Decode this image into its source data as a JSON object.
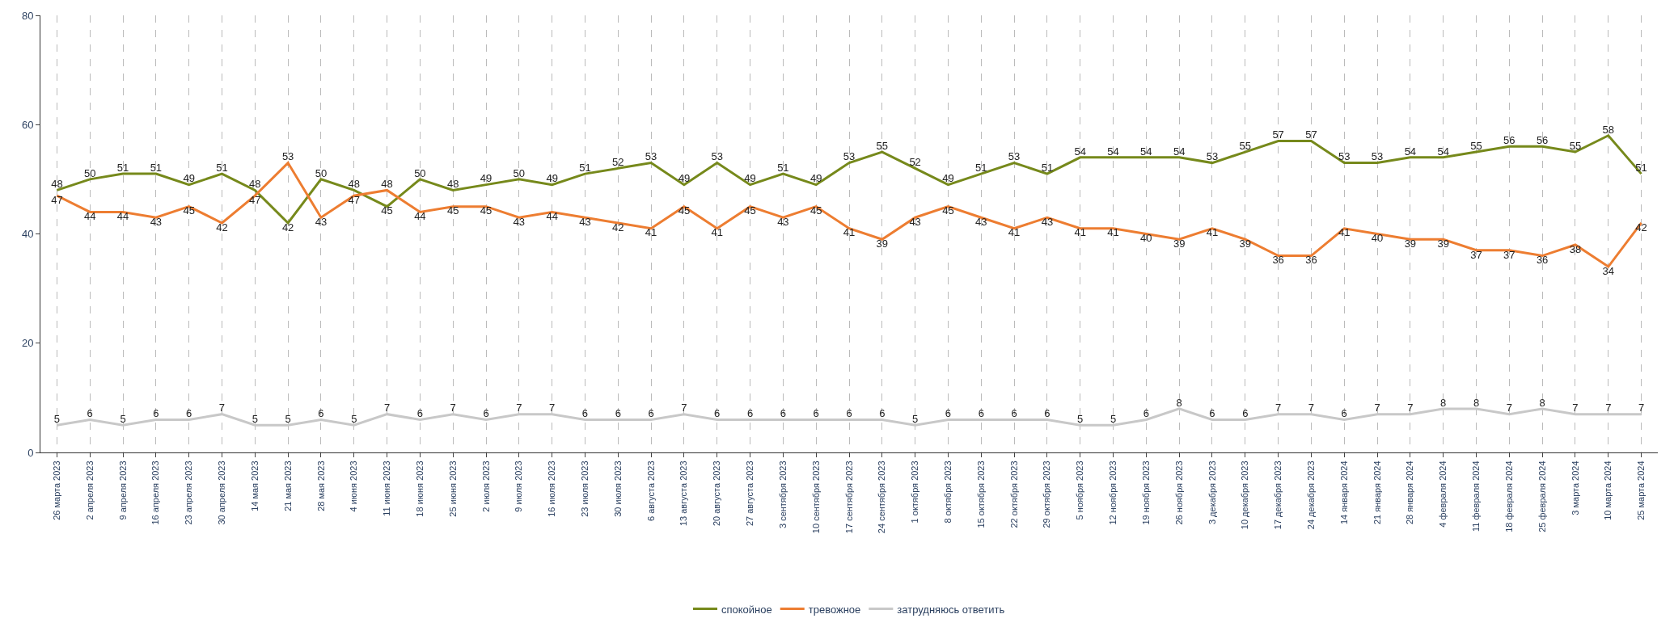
{
  "chart_data": {
    "type": "line",
    "categories": [
      "26 марта 2023",
      "2 апреля 2023",
      "9 апреля 2023",
      "16 апреля 2023",
      "23 апреля 2023",
      "30 апреля 2023",
      "14 мая 2023",
      "21 мая 2023",
      "28 мая 2023",
      "4 июня 2023",
      "11 июня 2023",
      "18 июня 2023",
      "25 июня 2023",
      "2 июля 2023",
      "9 июля 2023",
      "16 июля 2023",
      "23 июля 2023",
      "30 июля 2023",
      "6 августа 2023",
      "13 августа 2023",
      "20 августа 2023",
      "27 августа 2023",
      "3 сентября 2023",
      "10 сентября 2023",
      "17 сентября 2023",
      "24 сентября 2023",
      "1 октября 2023",
      "8 октября 2023",
      "15 октября 2023",
      "22 октября 2023",
      "29 октября 2023",
      "5 ноября 2023",
      "12 ноября 2023",
      "19 ноября 2023",
      "26 ноября 2023",
      "3 декабря 2023",
      "10 декабря 2023",
      "17 декабря 2023",
      "24 декабря 2023",
      "14 января 2024",
      "21 января 2024",
      "28 января 2024",
      "4 февраля 2024",
      "11 февраля 2024",
      "18 февраля 2024",
      "25 февраля 2024",
      "3 марта 2024",
      "10 марта 2024",
      "25 марта 2024"
    ],
    "series": [
      {
        "name": "спокойное",
        "color": "#76891b",
        "values": [
          48,
          50,
          51,
          51,
          49,
          51,
          48,
          42,
          50,
          48,
          45,
          50,
          48,
          49,
          50,
          49,
          51,
          52,
          53,
          49,
          53,
          49,
          51,
          49,
          53,
          55,
          52,
          49,
          51,
          53,
          51,
          54,
          54,
          54,
          54,
          53,
          55,
          57,
          57,
          53,
          53,
          54,
          54,
          55,
          56,
          56,
          55,
          58,
          51
        ]
      },
      {
        "name": "тревожное",
        "color": "#ed7d31",
        "values": [
          47,
          44,
          44,
          43,
          45,
          42,
          47,
          53,
          43,
          47,
          48,
          44,
          45,
          45,
          43,
          44,
          43,
          42,
          41,
          45,
          41,
          45,
          43,
          45,
          41,
          39,
          43,
          45,
          43,
          41,
          43,
          41,
          41,
          40,
          39,
          41,
          39,
          36,
          36,
          41,
          40,
          39,
          39,
          37,
          37,
          36,
          38,
          34,
          42
        ]
      },
      {
        "name": "затрудняюсь ответить",
        "color": "#c8c8c8",
        "values": [
          5,
          6,
          5,
          6,
          6,
          7,
          5,
          5,
          6,
          5,
          7,
          6,
          7,
          6,
          7,
          7,
          6,
          6,
          6,
          7,
          6,
          6,
          6,
          6,
          6,
          6,
          5,
          6,
          6,
          6,
          6,
          5,
          5,
          6,
          8,
          6,
          6,
          7,
          7,
          6,
          7,
          7,
          8,
          8,
          7,
          8,
          7,
          7,
          7
        ]
      }
    ],
    "ylim": [
      0,
      80
    ],
    "yticks": [
      0,
      20,
      40,
      60,
      80
    ],
    "grid": "x",
    "legend": "bottom",
    "data_labels": true,
    "marker": "none",
    "line_style": "solid"
  }
}
